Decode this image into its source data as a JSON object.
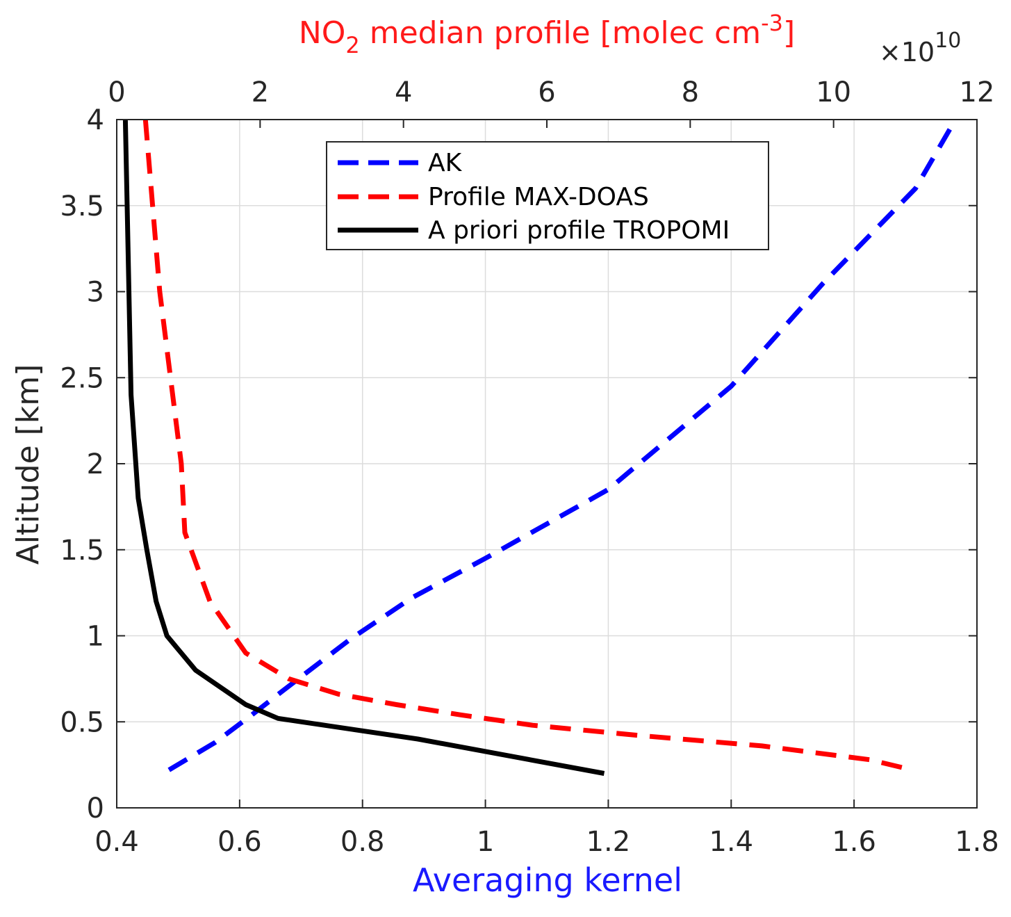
{
  "chart_data": {
    "type": "line",
    "bottom_axis": {
      "label": "Averaging kernel",
      "range": [
        0.4,
        1.8
      ],
      "ticks": [
        0.4,
        0.6,
        0.8,
        1.0,
        1.2,
        1.4,
        1.6,
        1.8
      ],
      "tick_labels": [
        "0.4",
        "0.6",
        "0.8",
        "1",
        "1.2",
        "1.4",
        "1.6",
        "1.8"
      ]
    },
    "top_axis": {
      "label_main": "NO",
      "label_sub": "2",
      "label_rest": " median profile [molec cm",
      "label_sup": "-3",
      "label_end": "]",
      "multiplier_prefix": "×10",
      "multiplier_exp": "10",
      "range": [
        0,
        12
      ],
      "ticks": [
        0,
        2,
        4,
        6,
        8,
        10,
        12
      ],
      "tick_labels": [
        "0",
        "2",
        "4",
        "6",
        "8",
        "10",
        "12"
      ]
    },
    "left_axis": {
      "label": "Altitude [km]",
      "range": [
        0,
        4
      ],
      "ticks": [
        0,
        0.5,
        1,
        1.5,
        2,
        2.5,
        3,
        3.5,
        4
      ],
      "tick_labels": [
        "0",
        "0.5",
        "1",
        "1.5",
        "2",
        "2.5",
        "3",
        "3.5",
        "4"
      ]
    },
    "grid": true,
    "legend_position": "top-center",
    "series": [
      {
        "name": "AK",
        "axis": "bottom",
        "color": "#0000ff",
        "style": "dashed",
        "x": [
          0.485,
          0.56,
          0.62,
          0.67,
          0.78,
          0.88,
          1.0,
          1.2,
          1.4,
          1.55,
          1.7,
          1.765
        ],
        "y": [
          0.22,
          0.38,
          0.54,
          0.68,
          0.98,
          1.22,
          1.45,
          1.85,
          2.45,
          3.05,
          3.6,
          4.0
        ]
      },
      {
        "name": "Profile MAX-DOAS",
        "axis": "top",
        "color": "#ff0000",
        "style": "dashed",
        "x": [
          0.4,
          0.6,
          0.9,
          0.95,
          1.3,
          1.8,
          2.4,
          3.1,
          3.9,
          4.8,
          5.8,
          7.3,
          9.0,
          10.5,
          11.0
        ],
        "y": [
          4.0,
          3.0,
          2.0,
          1.6,
          1.2,
          0.9,
          0.75,
          0.66,
          0.6,
          0.54,
          0.48,
          0.42,
          0.36,
          0.28,
          0.23
        ]
      },
      {
        "name": "A priori profile TROPOMI",
        "axis": "top",
        "color": "#000000",
        "style": "solid",
        "x": [
          0.12,
          0.15,
          0.2,
          0.3,
          0.42,
          0.55,
          0.7,
          1.1,
          1.8,
          2.25,
          4.2,
          6.8
        ],
        "y": [
          4.0,
          3.4,
          2.4,
          1.8,
          1.5,
          1.2,
          1.0,
          0.8,
          0.6,
          0.52,
          0.4,
          0.2
        ]
      }
    ]
  }
}
